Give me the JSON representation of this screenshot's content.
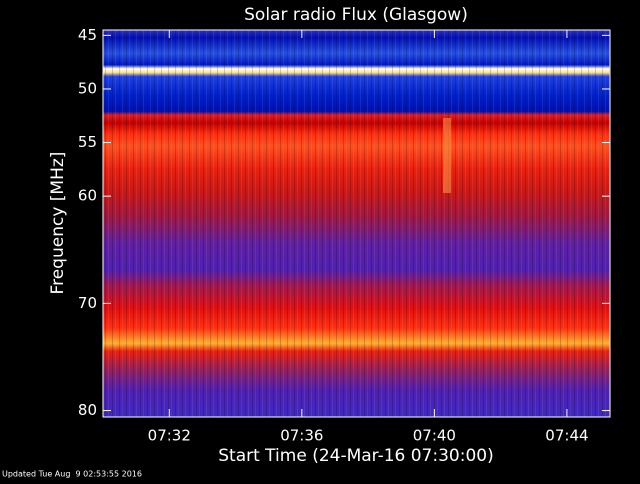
{
  "chart_data": {
    "type": "spectrogram",
    "title": "Solar radio Flux (Glasgow)",
    "y_label": "Frequency [MHz]",
    "x_label": "Start Time (24-Mar-16 07:30:00)",
    "footer": "Updated Tue Aug  9 02:53:55 2016",
    "ylim": [
      44.5,
      80.6
    ],
    "yticks": [
      45,
      50,
      55,
      60,
      70,
      80
    ],
    "y_reversed": true,
    "xlim": [
      30,
      45.3
    ],
    "xticks": [
      {
        "value": 32,
        "label": "07:32"
      },
      {
        "value": 36,
        "label": "07:36"
      },
      {
        "value": 40,
        "label": "07:40"
      },
      {
        "value": 44,
        "label": "07:44"
      }
    ]
  }
}
